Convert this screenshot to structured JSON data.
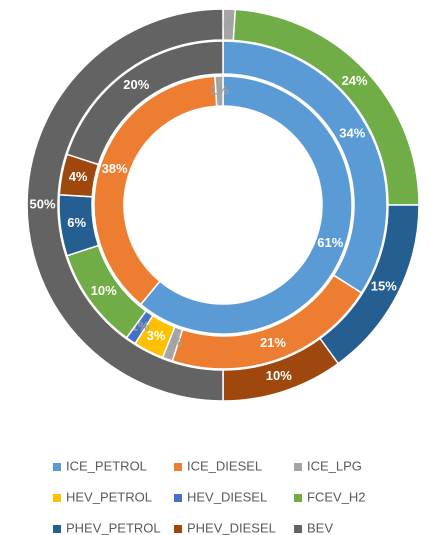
{
  "chart_data": {
    "type": "doughnut",
    "categories": [
      "ICE_PETROL",
      "ICE_DIESEL",
      "ICE_LPG",
      "HEV_PETROL",
      "HEV_DIESEL",
      "FCEV_H2",
      "PHEV_PETROL",
      "PHEV_DIESEL",
      "BEV"
    ],
    "colors": [
      "#5b9bd5",
      "#ed7d31",
      "#a5a5a5",
      "#ffc000",
      "#4472c4",
      "#70ad47",
      "#255e91",
      "#9e480e",
      "#636363"
    ],
    "series": [
      {
        "values": [
          61,
          38,
          1,
          0,
          0,
          0,
          0,
          0,
          0
        ],
        "value_labels": [
          "61%",
          "38%",
          "1%",
          null,
          null,
          null,
          null,
          null,
          null
        ]
      },
      {
        "values": [
          34,
          21,
          1,
          3,
          1,
          10,
          6,
          4,
          20
        ],
        "value_labels": [
          "34%",
          "21%",
          "1%",
          "3%",
          "1%",
          "10%",
          "6%",
          "4%",
          "20%"
        ]
      },
      {
        "values": [
          0,
          0,
          1,
          0,
          0,
          24,
          15,
          10,
          50
        ],
        "value_labels": [
          null,
          null,
          "1%",
          null,
          null,
          "24%",
          "15%",
          "10%",
          "50%"
        ]
      }
    ],
    "legend": "bottom"
  }
}
